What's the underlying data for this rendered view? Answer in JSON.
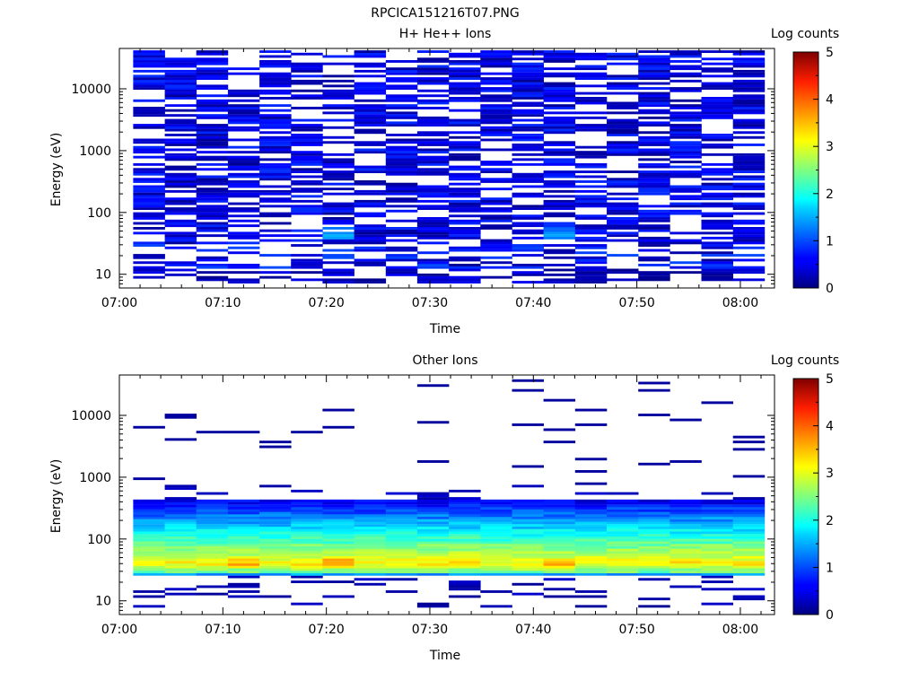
{
  "figure": {
    "title": "RPCICA151216T07.PNG"
  },
  "chart_data": [
    {
      "type": "heatmap",
      "title": "H+ He++ Ions",
      "xlabel": "Time",
      "ylabel": "Energy (eV)",
      "y_scale": "log",
      "ylim": [
        6,
        45000
      ],
      "x_ticks": [
        "07:00",
        "07:10",
        "07:20",
        "07:30",
        "07:40",
        "07:50",
        "08:00"
      ],
      "y_ticks": [
        "10",
        "100",
        "1000",
        "10000"
      ],
      "time_range": [
        "07:01:20",
        "08:02:20"
      ],
      "n_time_bins": 20,
      "colorbar": {
        "label": "Log counts",
        "range": [
          0,
          5
        ],
        "ticks": [
          "0",
          "1",
          "2",
          "3",
          "4",
          "5"
        ]
      },
      "value_summary": "Sparse low counts (log counts about 0 to 1.5) spread across 7 eV to 40 keV in all time bins; isolated higher values (about 1 to 1.5) near 40-60 eV around 07:23 and 07:45."
    },
    {
      "type": "heatmap",
      "title": "Other Ions",
      "xlabel": "Time",
      "ylabel": "Energy (eV)",
      "y_scale": "log",
      "ylim": [
        6,
        45000
      ],
      "x_ticks": [
        "07:00",
        "07:10",
        "07:20",
        "07:30",
        "07:40",
        "07:50",
        "08:00"
      ],
      "y_ticks": [
        "10",
        "100",
        "1000",
        "10000"
      ],
      "time_range": [
        "07:01:20",
        "08:02:20"
      ],
      "n_time_bins": 20,
      "colorbar": {
        "label": "Log counts",
        "range": [
          0,
          5
        ],
        "ticks": [
          "0",
          "1",
          "2",
          "3",
          "4",
          "5"
        ]
      },
      "value_summary": "Dense band from about 25 eV to 400 eV in every time bin; peak log counts about 3 to 3.7 near 35-45 eV (highest around 07:23 and 07:45); counts fall to about 0.5 at 300-400 eV; sparse isolated hits up to about 37 keV."
    }
  ]
}
